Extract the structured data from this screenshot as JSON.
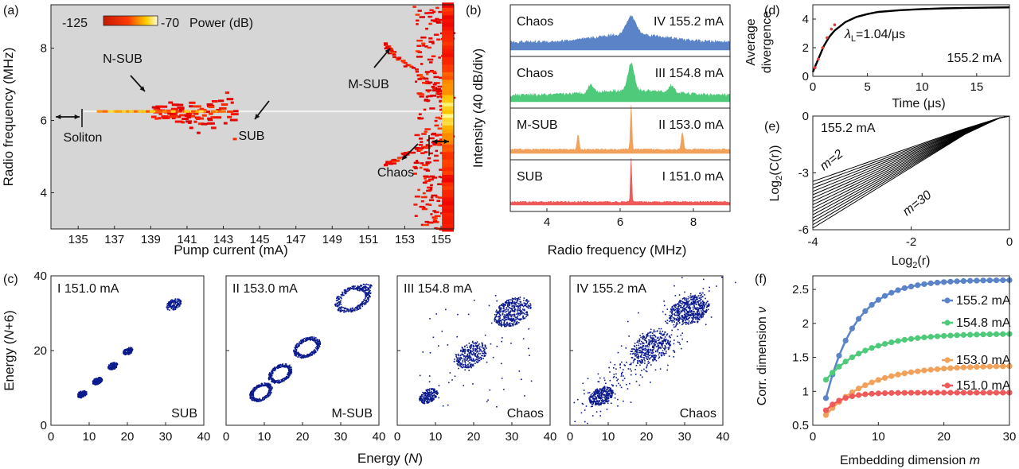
{
  "figure": {
    "kind": "multi-panel physics figure"
  },
  "chart_data": [
    {
      "panel": "(a)",
      "type": "heatmap",
      "xlabel": "Pump current (mA)",
      "ylabel": "Radio frequency (MHz)",
      "xlim": [
        133.5,
        155.7
      ],
      "ylim": [
        3,
        9.2
      ],
      "xticks": [
        "135",
        "137",
        "139",
        "141",
        "143",
        "145",
        "147",
        "149",
        "151",
        "153",
        "155"
      ],
      "yticks": [
        "4",
        "6",
        "8"
      ],
      "colorbar": {
        "min_label": "-125",
        "max_label": "-70",
        "unit_label": "Power (dB)"
      },
      "annotations": [
        "N-SUB",
        "SUB",
        "M-SUB",
        "Chaos",
        "Soliton"
      ],
      "features": {
        "sub_line_mhz": 6.25,
        "sub_start_ma": 135.3,
        "nsub_range_ma": [
          139,
          143.6
        ],
        "msub_start_ma": 151.8,
        "chaos_start_ma": 153.4
      }
    },
    {
      "panel": "(b)",
      "type": "line",
      "xlabel": "Radio frequency (MHz)",
      "ylabel": "Intensity (40 dB/div)",
      "xlim": [
        3,
        9
      ],
      "xticks": [
        "4",
        "6",
        "8"
      ],
      "series": [
        {
          "name": "Chaos",
          "label": "IV 155.2 mA",
          "color": "#5b84c8",
          "peaks_mhz": [
            6.3
          ]
        },
        {
          "name": "Chaos",
          "label": "III  154.8 mA",
          "color": "#4fc97a",
          "peaks_mhz": [
            5.2,
            6.3,
            7.4
          ]
        },
        {
          "name": "M-SUB",
          "label": "II 153.0 mA",
          "color": "#f2a15b",
          "peaks_mhz": [
            4.85,
            6.3,
            7.7
          ]
        },
        {
          "name": "SUB",
          "label": "I  151.0 mA",
          "color": "#ee5a5a",
          "peaks_mhz": [
            6.3
          ]
        }
      ]
    },
    {
      "panel": "(c)",
      "type": "scatter",
      "xlabel": "Energy (N)",
      "ylabel": "Energy (N+6)",
      "xlim": [
        0,
        40
      ],
      "ylim": [
        0,
        40
      ],
      "xticks": [
        "0",
        "10",
        "20",
        "30",
        "40"
      ],
      "yticks": [
        "0",
        "20",
        "40"
      ],
      "point_color": "#0b1a8c",
      "subplots": [
        {
          "title": "I 151.0 mA",
          "state": "SUB"
        },
        {
          "title": "II 153.0 mA",
          "state": "M-SUB"
        },
        {
          "title": "III 154.8 mA",
          "state": "Chaos"
        },
        {
          "title": "IV 155.2 mA",
          "state": "Chaos"
        }
      ]
    },
    {
      "panel": "(d)",
      "type": "line",
      "xlabel": "Time (μs)",
      "ylabel_lines": [
        "Average",
        "divergence"
      ],
      "xlim": [
        0,
        18
      ],
      "ylim": [
        0,
        5
      ],
      "xticks": [
        "0",
        "5",
        "10",
        "15"
      ],
      "yticks": [
        "0",
        "2",
        "4"
      ],
      "curve": {
        "x": [
          0,
          0.5,
          1,
          1.5,
          2,
          3,
          4,
          5,
          6,
          8,
          10,
          12,
          14,
          16,
          18
        ],
        "y": [
          0.3,
          1.2,
          2.1,
          2.75,
          3.2,
          3.8,
          4.15,
          4.35,
          4.5,
          4.62,
          4.7,
          4.75,
          4.78,
          4.8,
          4.82
        ]
      },
      "fit": {
        "x": [
          0.2,
          0.5,
          0.9,
          1.3,
          1.7,
          2.0
        ],
        "y": [
          0.6,
          1.2,
          2.0,
          2.7,
          3.3,
          3.6
        ],
        "color": "#e23a3a"
      },
      "lambda_label_sym": "λ",
      "lambda_label_sub": "L",
      "lambda_label_val": "=1.04/μs",
      "current_label": "155.2 mA"
    },
    {
      "panel": "(e)",
      "type": "line",
      "xlabel_pre": "Log",
      "xlabel_sub": "2",
      "xlabel_post": "(r)",
      "ylabel_pre": "Log",
      "ylabel_sub": "2",
      "ylabel_post": "(C(r))",
      "xlim": [
        -4,
        0
      ],
      "ylim": [
        -6,
        0
      ],
      "xticks": [
        "-4",
        "-2",
        "0"
      ],
      "yticks": [
        "-6",
        "-3",
        "0"
      ],
      "curve_count": 29,
      "m_min_label": "m=2",
      "m_max_label": "m=30",
      "current_label": "155.2 mA"
    },
    {
      "panel": "(f)",
      "type": "line",
      "xlabel": "Embedding dimension m",
      "ylabel": "Corr. dimension ν",
      "xlim": [
        0,
        30
      ],
      "ylim": [
        0.5,
        2.7
      ],
      "xticks": [
        "0",
        "10",
        "20",
        "30"
      ],
      "yticks": [
        "0.5",
        "1",
        "1.5",
        "2",
        "2.5"
      ],
      "series": [
        {
          "name": "155.2 mA",
          "color": "#5b84c8",
          "plateau": 2.64,
          "start": 0.9,
          "tau": 4.5
        },
        {
          "name": "154.8 mA",
          "color": "#4fc97a",
          "plateau": 1.85,
          "start": 1.17,
          "tau": 6.0
        },
        {
          "name": "153.0 mA",
          "color": "#f2a15b",
          "plateau": 1.38,
          "start": 0.65,
          "tau": 6.5
        },
        {
          "name": "151.0 mA",
          "color": "#ee5a5a",
          "plateau": 0.98,
          "start": 0.72,
          "tau": 2.5
        }
      ]
    }
  ],
  "panel_labels": [
    "(a)",
    "(b)",
    "(c)",
    "(d)",
    "(e)",
    "(f)"
  ]
}
